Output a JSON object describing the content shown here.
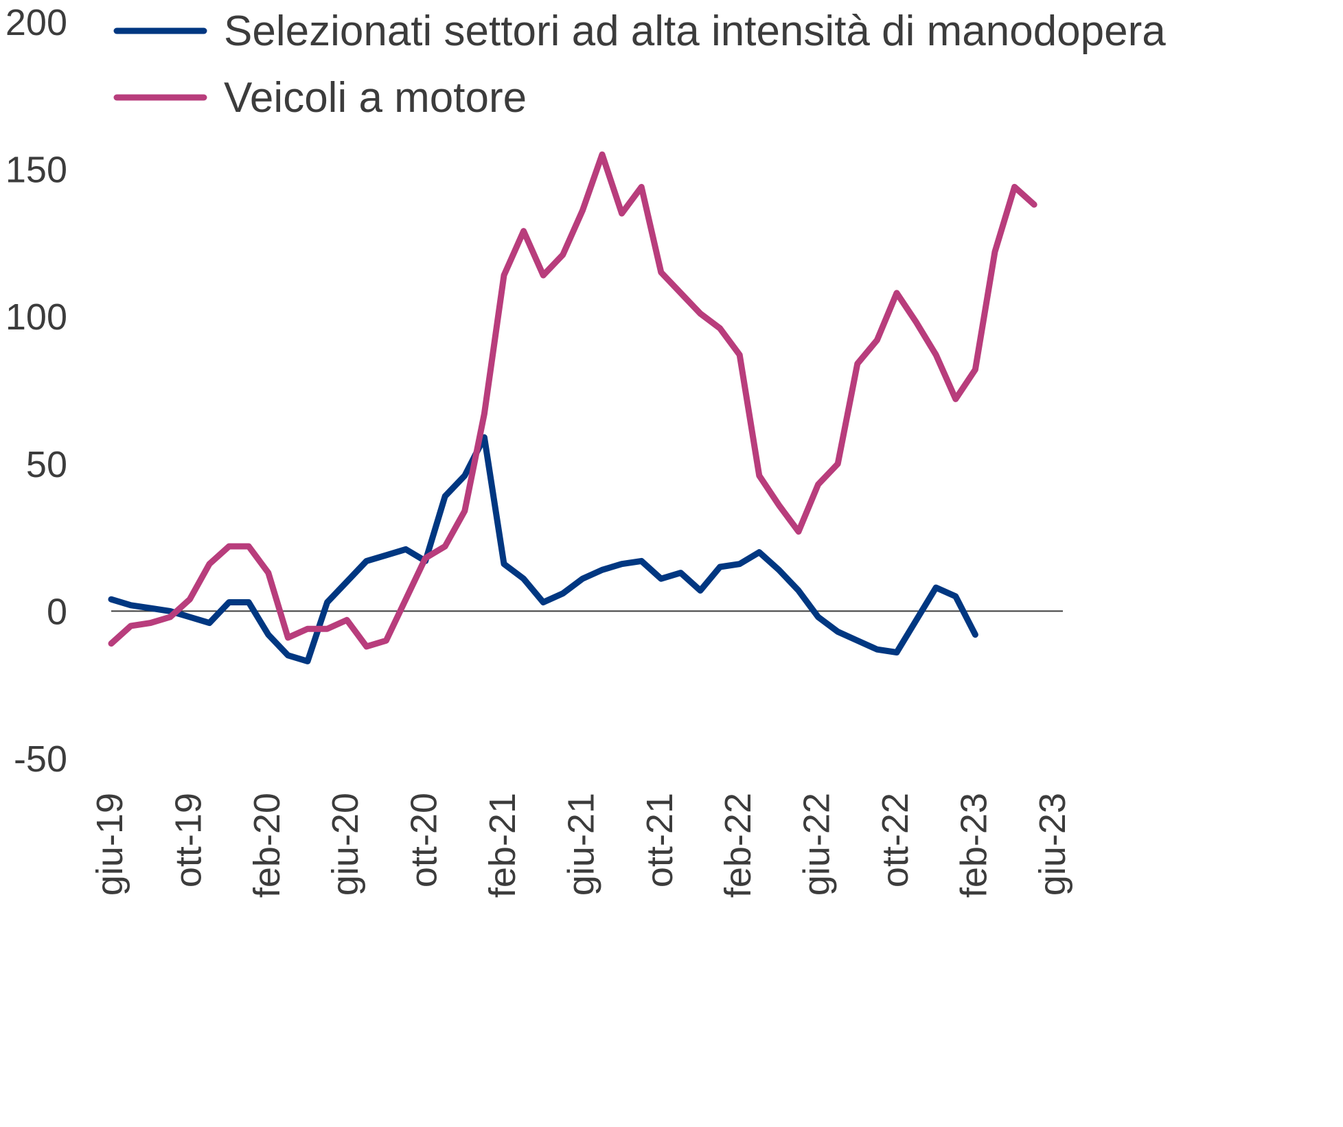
{
  "chart_data": {
    "type": "line",
    "title": "",
    "xlabel": "",
    "ylabel": "",
    "ylim": [
      -50,
      200
    ],
    "yticks": [
      "200",
      "150",
      "100",
      "50",
      "0",
      "-50"
    ],
    "ytick_values": [
      200,
      150,
      100,
      50,
      0,
      -50
    ],
    "xticks": [
      "giu-19",
      "ott-19",
      "feb-20",
      "giu-20",
      "ott-20",
      "feb-21",
      "giu-21",
      "ott-21",
      "feb-22",
      "giu-22",
      "ott-22",
      "feb-23",
      "giu-23"
    ],
    "x": [
      "giu-19",
      "lug-19",
      "ago-19",
      "set-19",
      "ott-19",
      "nov-19",
      "dic-19",
      "gen-20",
      "feb-20",
      "mar-20",
      "apr-20",
      "mag-20",
      "giu-20",
      "lug-20",
      "ago-20",
      "set-20",
      "ott-20",
      "nov-20",
      "dic-20",
      "gen-21",
      "feb-21",
      "mar-21",
      "apr-21",
      "mag-21",
      "giu-21",
      "lug-21",
      "ago-21",
      "set-21",
      "ott-21",
      "nov-21",
      "dic-21",
      "gen-22",
      "feb-22",
      "mar-22",
      "apr-22",
      "mag-22",
      "giu-22",
      "lug-22",
      "ago-22",
      "set-22",
      "ott-22",
      "nov-22",
      "dic-22",
      "gen-23",
      "feb-23",
      "mar-23",
      "apr-23",
      "mag-23",
      "giu-23"
    ],
    "zero_line": true,
    "grid": false,
    "legend_position": "top",
    "series": [
      {
        "name": "Selezionati settori ad alta intensità di manodopera",
        "color": "#003781",
        "values": [
          4,
          2,
          1,
          0,
          -2,
          -4,
          3,
          3,
          -8,
          -15,
          -17,
          3,
          10,
          17,
          19,
          21,
          17,
          39,
          46,
          59,
          16,
          11,
          3,
          6,
          11,
          14,
          16,
          17,
          11,
          13,
          7,
          15,
          16,
          20,
          14,
          7,
          -2,
          -7,
          -10,
          -13,
          -14,
          -3,
          8,
          5,
          -8,
          null,
          null,
          null,
          null
        ]
      },
      {
        "name": "Veicoli a motore",
        "color": "#b83d7c",
        "values": [
          -11,
          -5,
          -4,
          -2,
          4,
          16,
          22,
          22,
          13,
          -9,
          -6,
          -6,
          -3,
          -12,
          -10,
          4,
          18,
          22,
          34,
          67,
          114,
          129,
          114,
          121,
          136,
          155,
          135,
          144,
          115,
          108,
          101,
          96,
          87,
          46,
          36,
          27,
          43,
          50,
          84,
          92,
          108,
          98,
          87,
          72,
          82,
          122,
          144,
          138,
          null
        ]
      }
    ]
  }
}
